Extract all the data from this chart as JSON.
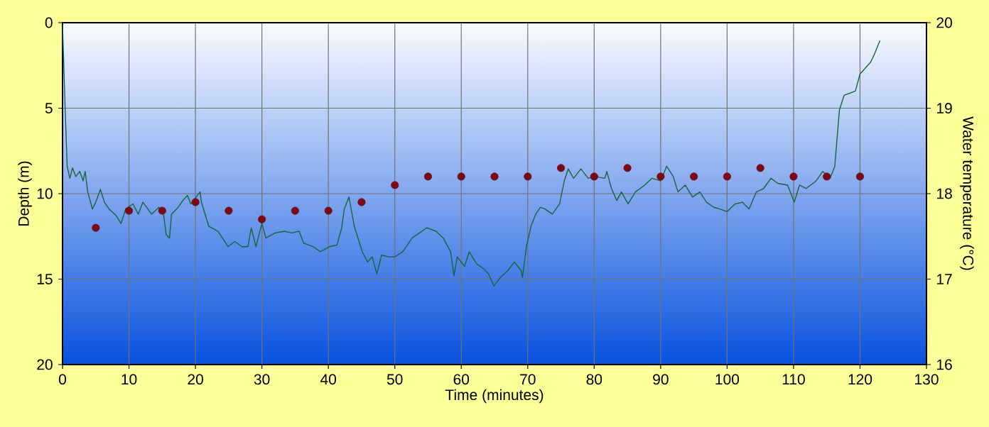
{
  "chart_data": {
    "type": "line",
    "xlabel": "Time (minutes)",
    "ylabel": "Depth (m)",
    "y2label": "Water temperature (°C)",
    "xlim": [
      0,
      130
    ],
    "xticks": [
      0,
      10,
      20,
      30,
      40,
      50,
      60,
      70,
      80,
      90,
      100,
      110,
      120,
      130
    ],
    "ylim": [
      20,
      0
    ],
    "yticks": [
      0,
      5,
      10,
      15,
      20
    ],
    "y2lim": [
      16,
      20
    ],
    "y2ticks": [
      16,
      17,
      18,
      19,
      20
    ],
    "grid": true,
    "legend": false,
    "series": [
      {
        "color": "#16663a",
        "marker": "none",
        "line_style": "solid",
        "x": [
          0,
          0.4,
          0.7,
          1.1,
          1.5,
          2,
          2.6,
          3.1,
          3.4,
          3.8,
          4.5,
          5,
          5.7,
          6.3,
          7,
          8.1,
          8.8,
          9.5,
          10.6,
          11.4,
          12.1,
          13.4,
          14.5,
          15.2,
          15.6,
          16.1,
          16.4,
          17.4,
          18.1,
          18.8,
          19.3,
          20.7,
          20.9,
          22,
          23.4,
          24.9,
          25.9,
          27,
          27.9,
          28.4,
          29.1,
          30,
          30.6,
          32,
          33.4,
          34.5,
          35.6,
          36.3,
          37.7,
          38.8,
          40.2,
          41.3,
          42,
          42.4,
          43.1,
          43.9,
          45.1,
          45.9,
          46.6,
          47.3,
          48,
          49.1,
          50,
          51.2,
          52.6,
          53.7,
          54.8,
          56.2,
          57.3,
          58.4,
          58.9,
          59.4,
          60.5,
          61.2,
          62.3,
          63.4,
          64.1,
          64.9,
          65.9,
          67,
          68,
          69,
          69.2,
          69.8,
          70.5,
          71.2,
          71.9,
          72.6,
          73.7,
          74.8,
          75.5,
          76.1,
          76.9,
          78,
          79.1,
          80.1,
          81.6,
          81.9,
          82.6,
          83.4,
          84.1,
          85.1,
          86.2,
          87.6,
          88.7,
          90,
          90.9,
          91.9,
          92.6,
          93.7,
          94.8,
          95.9,
          96.9,
          98,
          98.9,
          100,
          101.2,
          102.3,
          103.3,
          104.4,
          105.5,
          106.6,
          107.6,
          109.1,
          110.1,
          110.9,
          111.9,
          113.4,
          114.4,
          115.5,
          116.2,
          116.9,
          117.6,
          118.6,
          119.3,
          120,
          120.7,
          121.6,
          122.1,
          123
        ],
        "values": [
          0.1,
          5.1,
          8.4,
          9.1,
          8.5,
          9,
          8.7,
          9.25,
          8.7,
          9.9,
          10.9,
          10.5,
          9.75,
          10.5,
          10.9,
          11.3,
          11.75,
          10.9,
          10.6,
          11.2,
          10.5,
          11.2,
          10.8,
          11.2,
          12.4,
          12.6,
          11.2,
          10.8,
          10.4,
          10.1,
          10.6,
          9.9,
          10.5,
          11.9,
          12.2,
          13.1,
          12.8,
          13.1,
          13.1,
          12,
          13.1,
          11.75,
          12.6,
          12.3,
          12.2,
          12.3,
          12.2,
          12.9,
          13.1,
          13.4,
          13.1,
          13,
          12,
          10.9,
          10.2,
          11.9,
          13.4,
          14,
          13.7,
          14.7,
          13.6,
          13.7,
          13.7,
          13.4,
          12.6,
          12.3,
          12,
          12.2,
          12.6,
          13.4,
          14.8,
          13.7,
          14.25,
          13.4,
          14.1,
          14.4,
          14.7,
          15.4,
          14.9,
          14.5,
          14,
          14.5,
          14.9,
          13.1,
          11.9,
          11.2,
          10.8,
          10.9,
          11.2,
          10.6,
          9.25,
          8.55,
          9.1,
          8.55,
          9.1,
          9,
          9.1,
          8.7,
          9.7,
          10.4,
          9.9,
          10.6,
          9.9,
          9.5,
          9.1,
          9.25,
          8.4,
          9,
          9.9,
          9.5,
          10.2,
          9.9,
          10.5,
          10.8,
          10.9,
          11.05,
          10.6,
          10.5,
          10.9,
          9.9,
          9.7,
          9.1,
          9.4,
          9.5,
          10.5,
          9.5,
          9.7,
          9.25,
          8.7,
          9.1,
          8.4,
          5.1,
          4.25,
          4.1,
          4,
          3,
          2.7,
          2.3,
          1.9,
          1.05
        ]
      },
      {
        "type": "scatter",
        "axis": "y2",
        "color": "#7a0a14",
        "marker": "circle",
        "x": [
          5,
          10,
          15,
          20,
          25,
          30,
          35,
          40,
          45,
          50,
          55,
          60,
          65,
          70,
          75,
          80,
          85,
          90,
          95,
          100,
          105,
          110,
          115,
          120
        ],
        "values": [
          17.6,
          17.8,
          17.8,
          17.9,
          17.8,
          17.7,
          17.8,
          17.8,
          17.9,
          18.1,
          18.2,
          18.2,
          18.2,
          18.2,
          18.3,
          18.2,
          18.3,
          18.2,
          18.2,
          18.2,
          18.3,
          18.2,
          18.2,
          18.2
        ]
      }
    ]
  }
}
